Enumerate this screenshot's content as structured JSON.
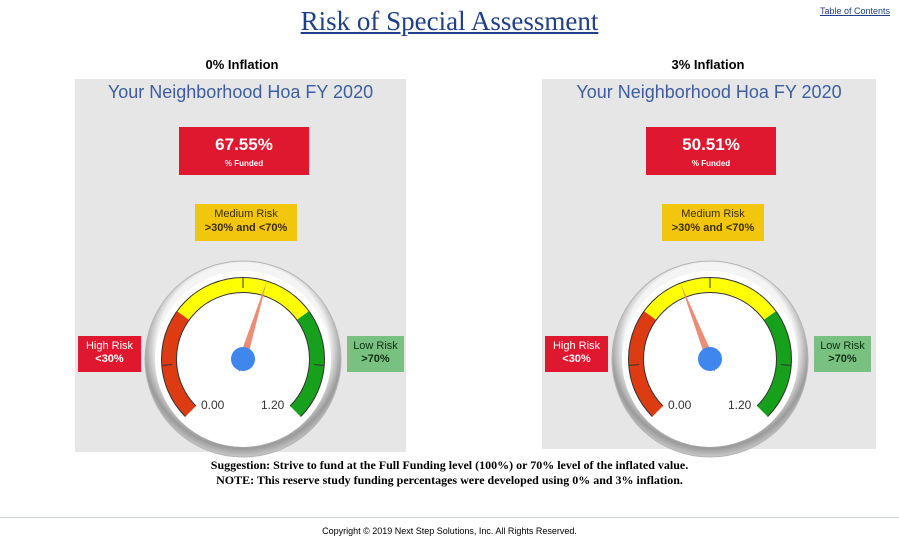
{
  "page": {
    "title": "Risk of Special Assessment",
    "toc_link": "Table of Contents"
  },
  "panels": [
    {
      "heading": "0% Inflation",
      "title": "Your Neighborhood Hoa FY 2020",
      "funded_value": "67.55%",
      "funded_label": "% Funded",
      "funded_fraction": 0.6755,
      "medium_risk": {
        "label": "Medium Risk",
        "range": ">30% and <70%"
      },
      "high_risk": {
        "label": "High Risk",
        "range": "<30%"
      },
      "low_risk": {
        "label": "Low Risk",
        "range": ">70%"
      },
      "gauge": {
        "min_label": "0.00",
        "max_label": "1.20"
      }
    },
    {
      "heading": "3% Inflation",
      "title": "Your Neighborhood Hoa FY 2020",
      "funded_value": "50.51%",
      "funded_label": "% Funded",
      "funded_fraction": 0.5051,
      "medium_risk": {
        "label": "Medium Risk",
        "range": ">30% and <70%"
      },
      "high_risk": {
        "label": "High Risk",
        "range": "<30%"
      },
      "low_risk": {
        "label": "Low Risk",
        "range": ">70%"
      },
      "gauge": {
        "min_label": "0.00",
        "max_label": "1.20"
      }
    }
  ],
  "notes": {
    "suggestion": "Suggestion: Strive to fund at the  Full Funding level (100%) or 70% level of the inflated value.",
    "note": "NOTE: This reserve study funding percentages were developed using 0% and 3% inflation."
  },
  "footer": {
    "copyright": "Copyright © 2019 Next Step Solutions, Inc. All Rights Reserved."
  },
  "colors": {
    "high_risk": "#e0182f",
    "medium_risk": "#f2c60d",
    "low_risk": "#78c180",
    "gauge_red": "#dd3c13",
    "gauge_yellow": "#ffff00",
    "gauge_green": "#16a01c",
    "needle": "#ec8c76",
    "hub": "#3f86ee"
  }
}
